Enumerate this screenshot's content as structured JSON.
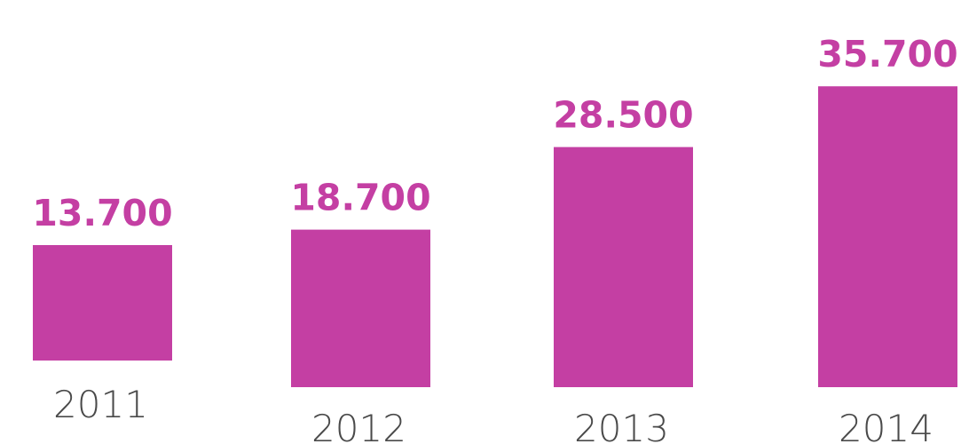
{
  "chart_data": {
    "type": "bar",
    "categories": [
      "2011",
      "2012",
      "2013",
      "2014"
    ],
    "values": [
      13700,
      18700,
      28500,
      35700
    ],
    "value_labels": [
      "13.700",
      "18.700",
      "28.500",
      "35.700"
    ],
    "grid": false,
    "legend": "none"
  },
  "colors": {
    "bar": "#c43fa3",
    "value_label": "#c43fa3",
    "category_label": "#4a4a4a",
    "background": "#ffffff"
  }
}
